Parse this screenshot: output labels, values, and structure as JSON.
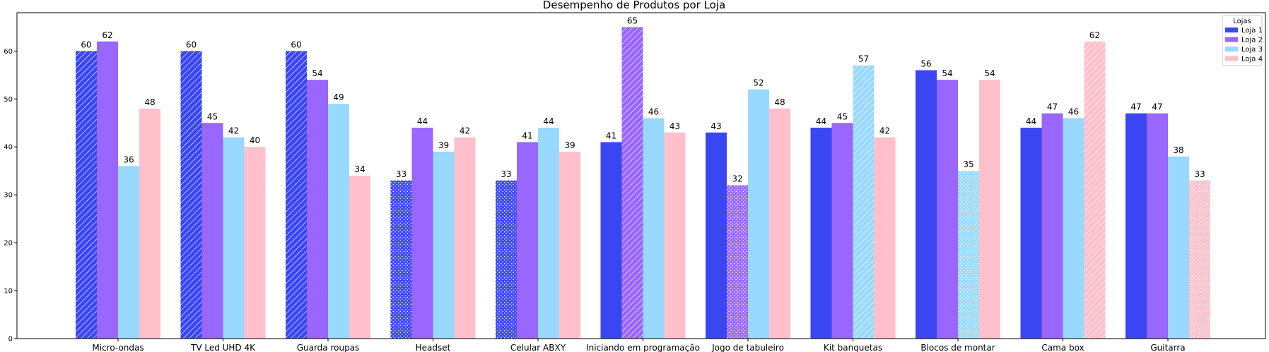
{
  "chart_data": {
    "type": "bar",
    "title": "Desempenho de Produtos por Loja",
    "xlabel": "",
    "ylabel": "",
    "ylim": [
      0,
      68
    ],
    "yticks": [
      0,
      10,
      20,
      30,
      40,
      50,
      60
    ],
    "grid": false,
    "legend": {
      "title": "Lojas",
      "placement": "top-right"
    },
    "categories": [
      "Micro-ondas",
      "TV Led UHD 4K",
      "Guarda roupas",
      "Headset",
      "Celular ABXY",
      "Iniciando em programação",
      "Jogo de tabuleiro",
      "Kit banquetas",
      "Blocos de montar",
      "Cama box",
      "Guitarra"
    ],
    "series": [
      {
        "name": "Loja 1",
        "color": "#3a46f2",
        "values": [
          60,
          60,
          60,
          33,
          33,
          41,
          43,
          44,
          56,
          44,
          47
        ]
      },
      {
        "name": "Loja 2",
        "color": "#9966ff",
        "values": [
          62,
          45,
          54,
          44,
          41,
          65,
          32,
          45,
          54,
          47,
          47
        ]
      },
      {
        "name": "Loja 3",
        "color": "#99d8ff",
        "values": [
          36,
          42,
          49,
          39,
          44,
          46,
          52,
          57,
          35,
          46,
          38
        ]
      },
      {
        "name": "Loja 4",
        "color": "#ffc0cb",
        "values": [
          48,
          40,
          34,
          42,
          39,
          43,
          48,
          42,
          54,
          62,
          33
        ]
      }
    ],
    "highlights": [
      {
        "category": "Micro-ondas",
        "series": "Loja 1",
        "style": "max-hatch"
      },
      {
        "category": "TV Led UHD 4K",
        "series": "Loja 1",
        "style": "max-hatch"
      },
      {
        "category": "Guarda roupas",
        "series": "Loja 1",
        "style": "max-hatch"
      },
      {
        "category": "Iniciando em programação",
        "series": "Loja 2",
        "style": "max-hatch"
      },
      {
        "category": "Kit banquetas",
        "series": "Loja 3",
        "style": "max-hatch"
      },
      {
        "category": "Cama box",
        "series": "Loja 4",
        "style": "max-hatch"
      },
      {
        "category": "Headset",
        "series": "Loja 1",
        "style": "min-dots"
      },
      {
        "category": "Celular ABXY",
        "series": "Loja 1",
        "style": "min-dots"
      },
      {
        "category": "Jogo de tabuleiro",
        "series": "Loja 2",
        "style": "min-dots"
      },
      {
        "category": "Blocos de montar",
        "series": "Loja 3",
        "style": "min-dots"
      },
      {
        "category": "Guitarra",
        "series": "Loja 4",
        "style": "min-dots"
      }
    ]
  }
}
